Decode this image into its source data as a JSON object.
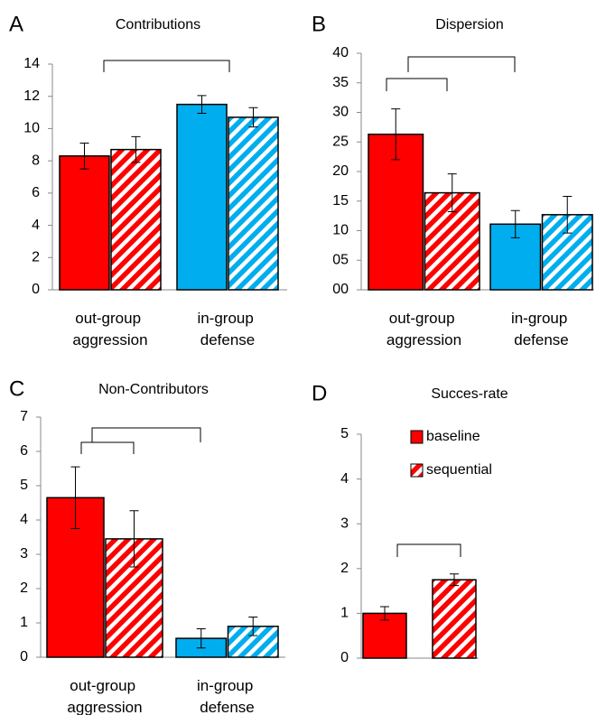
{
  "chart_data": [
    {
      "type": "bar",
      "panel": "A",
      "title": "Contributions",
      "categories": [
        "out-group aggression",
        "in-group defense"
      ],
      "category_colors": [
        "#ff0000",
        "#00aeef"
      ],
      "series": [
        {
          "style": "solid",
          "values": [
            8.3,
            11.5
          ],
          "errors": [
            0.8,
            0.55
          ]
        },
        {
          "style": "hatched",
          "values": [
            8.7,
            10.7
          ],
          "errors": [
            0.8,
            0.6
          ]
        }
      ],
      "ylim": [
        0,
        14
      ],
      "yticks": [
        0,
        2,
        4,
        6,
        8,
        10,
        12,
        14
      ]
    },
    {
      "type": "bar",
      "panel": "B",
      "title": "Dispersion",
      "categories": [
        "out-group aggression",
        "in-group defense"
      ],
      "category_colors": [
        "#ff0000",
        "#00aeef"
      ],
      "series": [
        {
          "style": "solid",
          "values": [
            26.3,
            11.1
          ],
          "errors": [
            4.3,
            2.3
          ]
        },
        {
          "style": "hatched",
          "values": [
            16.4,
            12.7
          ],
          "errors": [
            3.2,
            3.1
          ]
        }
      ],
      "ylim": [
        0,
        40
      ],
      "yticks": [
        {
          "value": 0,
          "label": "00"
        },
        {
          "value": 5,
          "label": "05"
        },
        10,
        15,
        20,
        25,
        30,
        35,
        40
      ]
    },
    {
      "type": "bar",
      "panel": "C",
      "title": "Non-Contributors",
      "categories": [
        "out-group aggression",
        "in-group defense"
      ],
      "category_colors": [
        "#ff0000",
        "#00aeef"
      ],
      "series": [
        {
          "style": "solid",
          "values": [
            4.65,
            0.55
          ],
          "errors": [
            0.9,
            0.28
          ]
        },
        {
          "style": "hatched",
          "values": [
            3.45,
            0.9
          ],
          "errors": [
            0.82,
            0.27
          ]
        }
      ],
      "ylim": [
        0,
        7
      ],
      "yticks": [
        0,
        1,
        2,
        3,
        4,
        5,
        6,
        7
      ]
    },
    {
      "type": "bar",
      "panel": "D",
      "title": "Succes-rate",
      "categories": [
        null
      ],
      "category_colors": [
        "#ff0000"
      ],
      "series": [
        {
          "name": "baseline",
          "style": "solid",
          "values": [
            1.0
          ],
          "errors": [
            0.15
          ]
        },
        {
          "name": "sequential",
          "style": "hatched",
          "values": [
            1.75
          ],
          "errors": [
            0.13
          ]
        }
      ],
      "ylim": [
        0,
        5
      ],
      "yticks": [
        0,
        1,
        2,
        3,
        4,
        5
      ],
      "legend": "upper-right"
    }
  ]
}
